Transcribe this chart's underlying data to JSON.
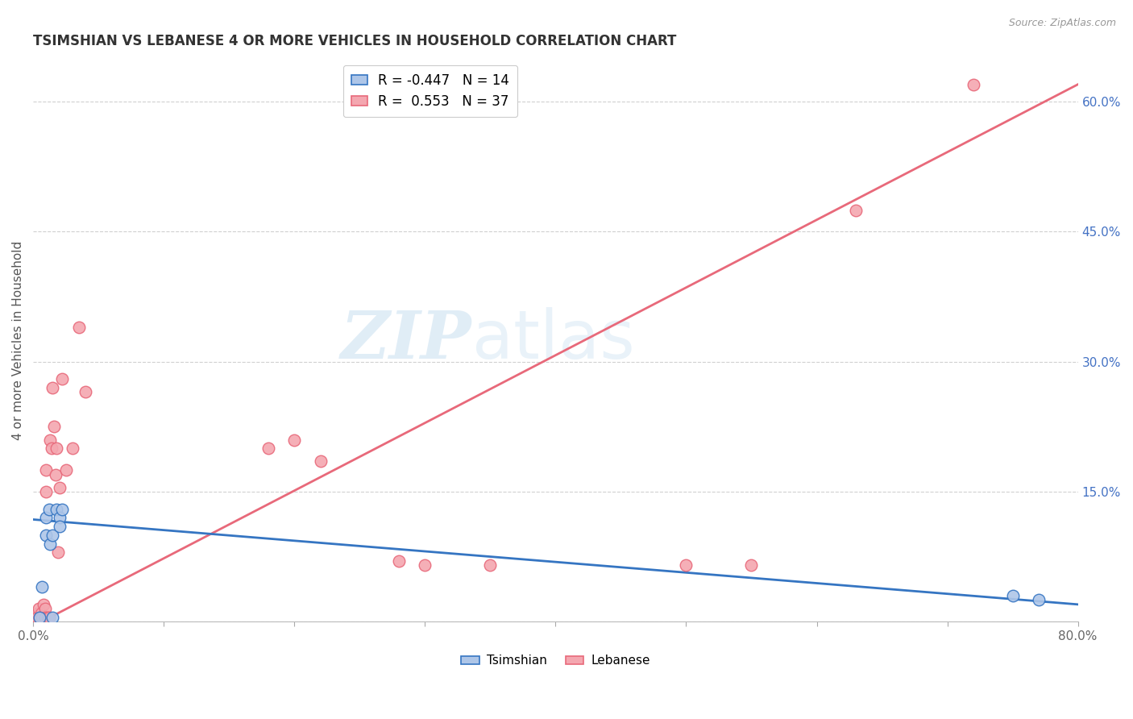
{
  "title": "TSIMSHIAN VS LEBANESE 4 OR MORE VEHICLES IN HOUSEHOLD CORRELATION CHART",
  "source": "Source: ZipAtlas.com",
  "ylabel": "4 or more Vehicles in Household",
  "xlim": [
    0.0,
    0.8
  ],
  "ylim": [
    0.0,
    0.65
  ],
  "xticks": [
    0.0,
    0.1,
    0.2,
    0.3,
    0.4,
    0.5,
    0.6,
    0.7,
    0.8
  ],
  "xticklabels": [
    "0.0%",
    "",
    "",
    "",
    "",
    "",
    "",
    "",
    "80.0%"
  ],
  "yticks_right": [
    0.0,
    0.15,
    0.3,
    0.45,
    0.6
  ],
  "ytick_labels_right": [
    "",
    "15.0%",
    "30.0%",
    "45.0%",
    "60.0%"
  ],
  "grid_color": "#d0d0d0",
  "background_color": "#ffffff",
  "tsimshian_color": "#aec6e8",
  "lebanese_color": "#f4a7b0",
  "tsimshian_line_color": "#3575c2",
  "lebanese_line_color": "#e8697a",
  "tsimshian_R": -0.447,
  "tsimshian_N": 14,
  "lebanese_R": 0.553,
  "lebanese_N": 37,
  "watermark_zip": "ZIP",
  "watermark_atlas": "atlas",
  "tsimshian_x": [
    0.005,
    0.007,
    0.01,
    0.01,
    0.012,
    0.013,
    0.015,
    0.015,
    0.018,
    0.02,
    0.02,
    0.022,
    0.75,
    0.77
  ],
  "tsimshian_y": [
    0.005,
    0.04,
    0.12,
    0.1,
    0.13,
    0.09,
    0.005,
    0.1,
    0.13,
    0.12,
    0.11,
    0.13,
    0.03,
    0.025
  ],
  "lebanese_x": [
    0.002,
    0.003,
    0.003,
    0.004,
    0.005,
    0.006,
    0.007,
    0.008,
    0.009,
    0.009,
    0.01,
    0.01,
    0.011,
    0.012,
    0.013,
    0.014,
    0.015,
    0.016,
    0.017,
    0.018,
    0.019,
    0.02,
    0.022,
    0.025,
    0.03,
    0.035,
    0.04,
    0.18,
    0.2,
    0.22,
    0.28,
    0.3,
    0.35,
    0.5,
    0.55,
    0.63,
    0.72
  ],
  "lebanese_y": [
    0.005,
    0.01,
    0.005,
    0.015,
    0.005,
    0.01,
    0.005,
    0.02,
    0.015,
    0.005,
    0.175,
    0.15,
    0.005,
    0.005,
    0.21,
    0.2,
    0.27,
    0.225,
    0.17,
    0.2,
    0.08,
    0.155,
    0.28,
    0.175,
    0.2,
    0.34,
    0.265,
    0.2,
    0.21,
    0.185,
    0.07,
    0.065,
    0.065,
    0.065,
    0.065,
    0.475,
    0.62
  ],
  "leb_line_start_x": 0.0,
  "leb_line_start_y": -0.005,
  "leb_line_end_x": 0.8,
  "leb_line_end_y": 0.62,
  "tsim_line_start_x": 0.0,
  "tsim_line_start_y": 0.118,
  "tsim_line_end_x": 0.8,
  "tsim_line_end_y": 0.02
}
